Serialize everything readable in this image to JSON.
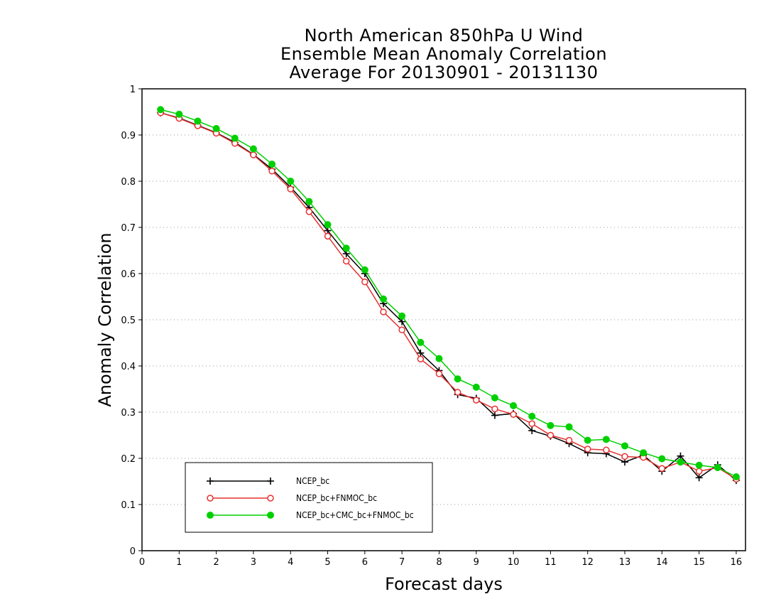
{
  "chart_data": {
    "type": "line",
    "title": [
      "North American 850hPa U Wind",
      "Ensemble Mean Anomaly Correlation",
      "Average For 20130901 - 20131130"
    ],
    "xlabel": "Forecast days",
    "ylabel": "Anomaly Correlation",
    "xlim": [
      0,
      16.25
    ],
    "ylim": [
      0,
      1
    ],
    "xticks": [
      "0",
      "1",
      "2",
      "3",
      "4",
      "5",
      "6",
      "7",
      "8",
      "9",
      "10",
      "11",
      "12",
      "13",
      "14",
      "15",
      "16"
    ],
    "yticks": [
      "0",
      "0.1",
      "0.2",
      "0.3",
      "0.4",
      "0.5",
      "0.6",
      "0.7",
      "0.8",
      "0.9",
      "1"
    ],
    "grid": "horizontal-dotted",
    "legend_position": "bottom-left",
    "x": [
      0.5,
      1,
      1.5,
      2,
      2.5,
      3,
      3.5,
      4,
      4.5,
      5,
      5.5,
      6,
      6.5,
      7,
      7.5,
      8,
      8.5,
      9,
      9.5,
      10,
      10.5,
      11,
      11.5,
      12,
      12.5,
      13,
      13.5,
      14,
      14.5,
      15,
      15.5,
      16
    ],
    "series": [
      {
        "name": "NCEP_bc",
        "color": "#000000",
        "marker": "plus",
        "values": [
          0.948,
          0.937,
          0.921,
          0.905,
          0.884,
          0.858,
          0.826,
          0.787,
          0.743,
          0.693,
          0.643,
          0.6,
          0.535,
          0.496,
          0.428,
          0.39,
          0.338,
          0.33,
          0.293,
          0.297,
          0.26,
          0.248,
          0.232,
          0.212,
          0.21,
          0.192,
          0.207,
          0.172,
          0.205,
          0.158,
          0.186,
          0.152
        ]
      },
      {
        "name": "NCEP_bc+FNMOC_bc",
        "color": "#e83030",
        "marker": "open-circle",
        "values": [
          0.948,
          0.936,
          0.92,
          0.904,
          0.882,
          0.857,
          0.822,
          0.783,
          0.734,
          0.681,
          0.627,
          0.582,
          0.517,
          0.478,
          0.415,
          0.383,
          0.343,
          0.326,
          0.307,
          0.295,
          0.275,
          0.25,
          0.239,
          0.22,
          0.218,
          0.204,
          0.202,
          0.178,
          0.192,
          0.172,
          0.18,
          0.155
        ]
      },
      {
        "name": "NCEP_bc+CMC_bc+FNMOC_bc",
        "color": "#00d000",
        "marker": "filled-circle",
        "values": [
          0.955,
          0.945,
          0.93,
          0.914,
          0.893,
          0.87,
          0.837,
          0.8,
          0.756,
          0.706,
          0.655,
          0.608,
          0.545,
          0.508,
          0.451,
          0.416,
          0.372,
          0.354,
          0.331,
          0.314,
          0.291,
          0.271,
          0.268,
          0.239,
          0.241,
          0.227,
          0.212,
          0.199,
          0.192,
          0.185,
          0.18,
          0.16
        ]
      }
    ]
  }
}
